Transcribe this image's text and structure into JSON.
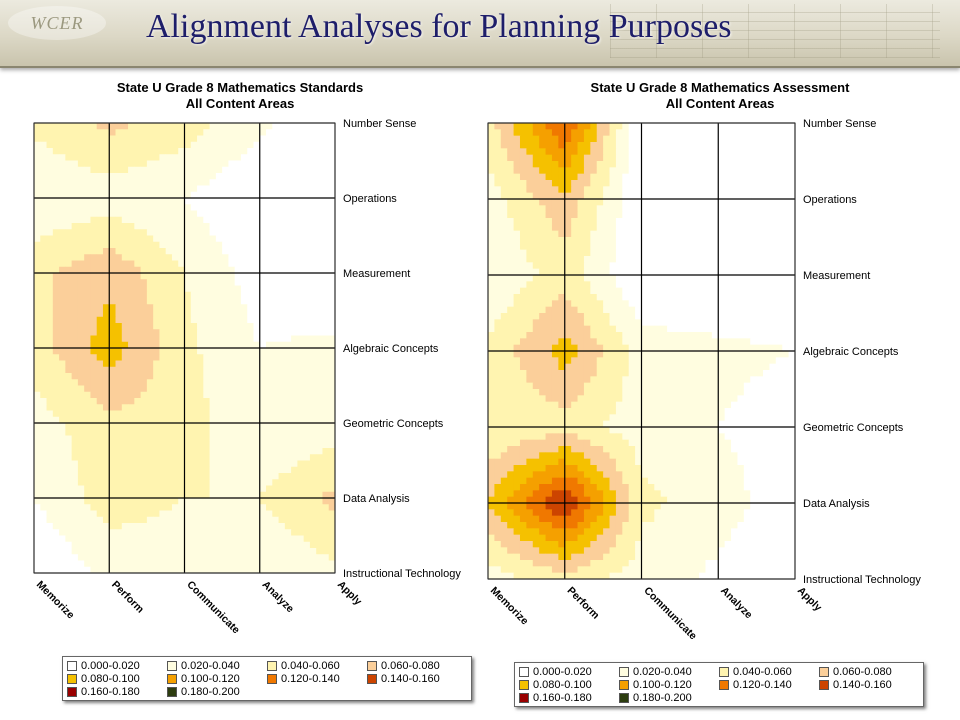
{
  "header": {
    "title": "Alignment Analyses for Planning Purposes",
    "logo_text": "WCER"
  },
  "legend_bins": [
    "0.000-0.020",
    "0.020-0.040",
    "0.040-0.060",
    "0.060-0.080",
    "0.080-0.100",
    "0.100-0.120",
    "0.120-0.140",
    "0.140-0.160",
    "0.160-0.180",
    "0.180-0.200"
  ],
  "legend_colors": [
    "#ffffff",
    "#fffde0",
    "#fff4b0",
    "#fbcf9a",
    "#f5c100",
    "#f5a000",
    "#f07800",
    "#cc4400",
    "#990000",
    "#2d3d10"
  ],
  "chart_data": [
    {
      "type": "heatmap",
      "title": "State U Grade 8 Mathematics Standards",
      "subtitle": "All Content Areas",
      "x_labels": [
        "Memorize",
        "Perform",
        "Communicate",
        "Analyze",
        "Apply"
      ],
      "y_labels": [
        "Number Sense",
        "Operations",
        "Measurement",
        "Algebraic Concepts",
        "Geometric Concepts",
        "Data Analysis",
        "Instructional Technology"
      ],
      "values": [
        [
          0.045,
          0.065,
          0.05,
          0.025,
          0.0
        ],
        [
          0.02,
          0.03,
          0.02,
          0.0,
          0.0
        ],
        [
          0.055,
          0.075,
          0.04,
          0.01,
          0.0
        ],
        [
          0.05,
          0.09,
          0.045,
          0.02,
          0.025
        ],
        [
          0.03,
          0.055,
          0.05,
          0.02,
          0.03
        ],
        [
          0.02,
          0.05,
          0.04,
          0.04,
          0.065
        ],
        [
          0.0,
          0.025,
          0.03,
          0.02,
          0.035
        ]
      ]
    },
    {
      "type": "heatmap",
      "title": "State U Grade 8 Mathematics Assessment",
      "subtitle": "All Content Areas",
      "x_labels": [
        "Memorize",
        "Perform",
        "Communicate",
        "Analyze",
        "Apply"
      ],
      "y_labels": [
        "Number Sense",
        "Operations",
        "Measurement",
        "Algebraic Concepts",
        "Geometric Concepts",
        "Data Analysis",
        "Instructional Technology"
      ],
      "values": [
        [
          0.05,
          0.145,
          0.0,
          0.0,
          0.01
        ],
        [
          0.03,
          0.075,
          0.0,
          0.0,
          0.0
        ],
        [
          0.02,
          0.05,
          0.0,
          0.0,
          0.0
        ],
        [
          0.045,
          0.09,
          0.03,
          0.025,
          0.02
        ],
        [
          0.04,
          0.05,
          0.03,
          0.02,
          0.01
        ],
        [
          0.08,
          0.165,
          0.045,
          0.03,
          0.005
        ],
        [
          0.03,
          0.05,
          0.03,
          0.015,
          0.0
        ]
      ]
    }
  ]
}
